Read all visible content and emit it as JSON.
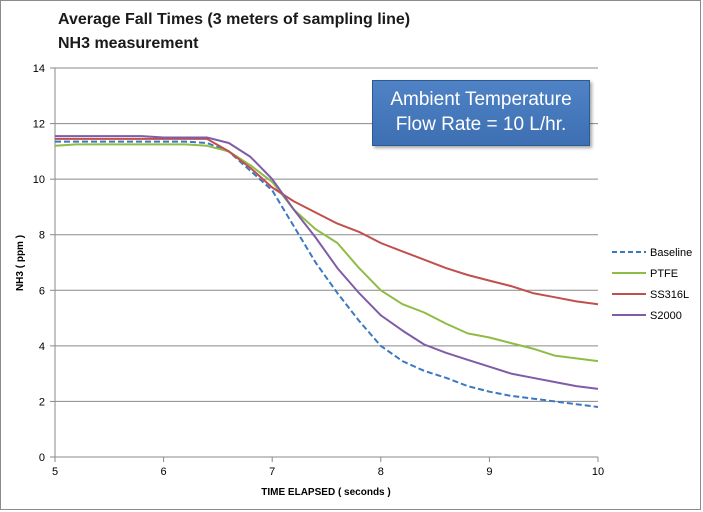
{
  "chart_data": {
    "type": "line",
    "title": "Average Fall Times (3 meters of sampling line)",
    "subtitle": "NH3 measurement",
    "xlabel": "TIME ELAPSED ( seconds )",
    "ylabel": "NH3 ( ppm )",
    "xlim": [
      5,
      10
    ],
    "ylim": [
      0,
      14
    ],
    "xticks": [
      5,
      6,
      7,
      8,
      9,
      10
    ],
    "yticks": [
      0,
      2,
      4,
      6,
      8,
      10,
      12,
      14
    ],
    "grid": "horizontal",
    "legend": "right",
    "annotation": [
      "Ambient Temperature",
      "Flow Rate = 10 L/hr."
    ],
    "series": [
      {
        "name": "Baseline",
        "color": "#3b78c2",
        "dash": true,
        "x": [
          5,
          5.2,
          5.4,
          5.6,
          5.8,
          6,
          6.2,
          6.4,
          6.6,
          6.8,
          7,
          7.2,
          7.4,
          7.6,
          7.8,
          8,
          8.2,
          8.4,
          8.6,
          8.8,
          9,
          9.2,
          9.4,
          9.6,
          9.8,
          10
        ],
        "y": [
          11.35,
          11.35,
          11.35,
          11.35,
          11.35,
          11.35,
          11.35,
          11.3,
          11.0,
          10.3,
          9.6,
          8.3,
          7.0,
          5.9,
          4.9,
          4.0,
          3.45,
          3.1,
          2.85,
          2.55,
          2.35,
          2.2,
          2.1,
          2.0,
          1.9,
          1.8
        ]
      },
      {
        "name": "PTFE",
        "color": "#8fbc45",
        "dash": false,
        "x": [
          5,
          5.2,
          5.4,
          5.6,
          5.8,
          6,
          6.2,
          6.4,
          6.6,
          6.8,
          7,
          7.2,
          7.4,
          7.6,
          7.8,
          8,
          8.2,
          8.4,
          8.6,
          8.8,
          9,
          9.2,
          9.4,
          9.6,
          9.8,
          10
        ],
        "y": [
          11.2,
          11.25,
          11.25,
          11.25,
          11.25,
          11.25,
          11.25,
          11.2,
          11.0,
          10.5,
          9.9,
          8.9,
          8.2,
          7.7,
          6.8,
          6.0,
          5.5,
          5.2,
          4.8,
          4.45,
          4.3,
          4.1,
          3.9,
          3.65,
          3.55,
          3.45
        ]
      },
      {
        "name": "SS316L",
        "color": "#c0504d",
        "dash": false,
        "x": [
          5,
          5.2,
          5.4,
          5.6,
          5.8,
          6,
          6.2,
          6.4,
          6.6,
          6.8,
          7,
          7.2,
          7.4,
          7.6,
          7.8,
          8,
          8.2,
          8.4,
          8.6,
          8.8,
          9,
          9.2,
          9.4,
          9.6,
          9.8,
          10
        ],
        "y": [
          11.45,
          11.45,
          11.45,
          11.45,
          11.45,
          11.45,
          11.45,
          11.45,
          11.0,
          10.4,
          9.7,
          9.2,
          8.8,
          8.4,
          8.1,
          7.7,
          7.4,
          7.1,
          6.8,
          6.55,
          6.35,
          6.15,
          5.9,
          5.75,
          5.6,
          5.5
        ]
      },
      {
        "name": "S2000",
        "color": "#7f5ca8",
        "dash": false,
        "x": [
          5,
          5.2,
          5.4,
          5.6,
          5.8,
          6,
          6.2,
          6.4,
          6.6,
          6.8,
          7,
          7.2,
          7.4,
          7.6,
          7.8,
          8,
          8.2,
          8.4,
          8.6,
          8.8,
          9,
          9.2,
          9.4,
          9.6,
          9.8,
          10
        ],
        "y": [
          11.55,
          11.55,
          11.55,
          11.55,
          11.55,
          11.5,
          11.5,
          11.5,
          11.3,
          10.8,
          10.0,
          8.9,
          7.9,
          6.8,
          5.9,
          5.1,
          4.55,
          4.05,
          3.75,
          3.5,
          3.25,
          3.0,
          2.85,
          2.7,
          2.55,
          2.45
        ]
      }
    ]
  }
}
